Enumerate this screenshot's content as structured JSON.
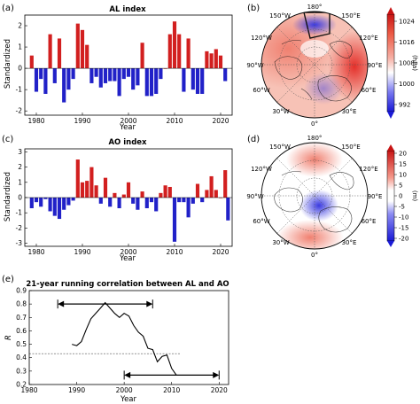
{
  "chart_data": [
    {
      "type": "bar",
      "panel": "(a)",
      "title": "AL index",
      "xlabel": "Year",
      "ylabel": "Standardized",
      "x": [
        1979,
        1980,
        1981,
        1982,
        1983,
        1984,
        1985,
        1986,
        1987,
        1988,
        1989,
        1990,
        1991,
        1992,
        1993,
        1994,
        1995,
        1996,
        1997,
        1998,
        1999,
        2000,
        2001,
        2002,
        2003,
        2004,
        2005,
        2006,
        2007,
        2008,
        2009,
        2010,
        2011,
        2012,
        2013,
        2014,
        2015,
        2016,
        2017,
        2018,
        2019,
        2020,
        2021
      ],
      "values": [
        0.6,
        -1.1,
        -0.5,
        -1.2,
        1.6,
        -0.7,
        1.4,
        -1.6,
        -1.0,
        -0.5,
        2.1,
        1.8,
        1.1,
        -0.7,
        -0.4,
        -0.9,
        -0.7,
        -0.6,
        -0.6,
        -1.3,
        -0.5,
        -0.4,
        -1.0,
        -0.8,
        1.2,
        -1.3,
        -1.3,
        -1.2,
        -0.5,
        0.0,
        1.6,
        2.2,
        1.6,
        -1.1,
        1.4,
        -1.0,
        -1.2,
        -1.2,
        0.8,
        0.7,
        0.9,
        0.6,
        -0.6
      ],
      "xticks": [
        "1980",
        "1990",
        "2000",
        "2010",
        "2020"
      ],
      "yticks": [
        "2",
        "1",
        "0",
        "-1",
        "-2"
      ],
      "xlim": [
        1977.5,
        2022.5
      ],
      "ylim": [
        -2.2,
        2.5
      ],
      "colors": {
        "positive": "#d21f1f",
        "negative": "#2121c8"
      }
    },
    {
      "type": "bar",
      "panel": "(c)",
      "title": "AO index",
      "xlabel": "Year",
      "ylabel": "Standardized",
      "x": [
        1979,
        1980,
        1981,
        1982,
        1983,
        1984,
        1985,
        1986,
        1987,
        1988,
        1989,
        1990,
        1991,
        1992,
        1993,
        1994,
        1995,
        1996,
        1997,
        1998,
        1999,
        2000,
        2001,
        2002,
        2003,
        2004,
        2005,
        2006,
        2007,
        2008,
        2009,
        2010,
        2011,
        2012,
        2013,
        2014,
        2015,
        2016,
        2017,
        2018,
        2019,
        2020,
        2021
      ],
      "values": [
        -0.7,
        -0.3,
        -0.6,
        -0.1,
        -0.9,
        -1.2,
        -1.4,
        -0.8,
        -0.5,
        -0.2,
        2.5,
        1.0,
        1.1,
        2.0,
        0.8,
        -0.4,
        1.3,
        -0.6,
        0.3,
        -0.7,
        0.2,
        1.0,
        -0.4,
        -0.8,
        0.4,
        -0.7,
        -0.3,
        -0.9,
        0.3,
        0.8,
        0.7,
        -2.9,
        -0.3,
        -0.3,
        -1.3,
        -0.4,
        0.9,
        -0.3,
        0.5,
        1.4,
        0.5,
        0.0,
        1.8
      ],
      "extra_bar": {
        "x": 2021.6,
        "value": -1.5
      },
      "xticks": [
        "1980",
        "1990",
        "2000",
        "2010",
        "2020"
      ],
      "yticks": [
        "3",
        "2",
        "1",
        "0",
        "-1",
        "-2",
        "-3"
      ],
      "xlim": [
        1977.5,
        2022.5
      ],
      "ylim": [
        -3.2,
        3.2
      ],
      "colors": {
        "positive": "#d21f1f",
        "negative": "#2121c8"
      }
    },
    {
      "type": "line",
      "panel": "(e)",
      "title": "21-year running correlation between AL and AO",
      "xlabel": "Year",
      "ylabel": "R",
      "x": [
        1989,
        1990,
        1991,
        1992,
        1993,
        1994,
        1995,
        1996,
        1997,
        1998,
        1999,
        2000,
        2001,
        2002,
        2003,
        2004,
        2005,
        2006,
        2007,
        2008,
        2009,
        2010,
        2011
      ],
      "y": [
        0.5,
        0.49,
        0.52,
        0.61,
        0.69,
        0.73,
        0.77,
        0.81,
        0.77,
        0.73,
        0.7,
        0.73,
        0.71,
        0.64,
        0.59,
        0.56,
        0.47,
        0.46,
        0.37,
        0.41,
        0.42,
        0.32,
        0.27
      ],
      "reference_line": 0.43,
      "arrows": [
        {
          "x_start": 1986,
          "x_end": 2006,
          "y": 0.8
        },
        {
          "x_start": 2000,
          "x_end": 2020,
          "y": 0.27
        }
      ],
      "xticks": [
        "1980",
        "1990",
        "2000",
        "2010",
        "2020"
      ],
      "yticks": [
        "0.9",
        "0.8",
        "0.7",
        "0.6",
        "0.5",
        "0.4",
        "0.3",
        "0.2"
      ],
      "xlim": [
        1980,
        2022
      ],
      "ylim": [
        0.2,
        0.9
      ]
    },
    {
      "type": "heatmap",
      "panel": "(b)",
      "projection": "north polar stereographic",
      "unit": "(hPa)",
      "colorbar_ticks": [
        "1024",
        "1016",
        "1008",
        "1000",
        "992"
      ],
      "meridian_labels": [
        "180°",
        "150°W",
        "150°E",
        "120°W",
        "120°E",
        "90°W",
        "90°E",
        "60°W",
        "60°E",
        "30°W",
        "30°E",
        "0°"
      ]
    },
    {
      "type": "heatmap",
      "panel": "(d)",
      "projection": "north polar stereographic",
      "unit": "(m)",
      "colorbar_ticks": [
        "20",
        "15",
        "10",
        "5",
        "0",
        "-5",
        "-10",
        "-15",
        "-20"
      ],
      "meridian_labels": [
        "180°",
        "150°W",
        "150°E",
        "120°W",
        "120°E",
        "90°W",
        "90°E",
        "60°W",
        "60°E",
        "30°W",
        "30°E",
        "0°"
      ]
    }
  ]
}
